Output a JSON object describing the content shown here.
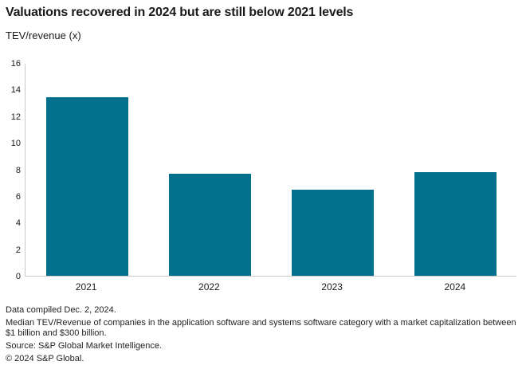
{
  "header": {
    "title": "Valuations recovered in 2024 but are still below 2021 levels",
    "subtitle": "TEV/revenue (x)"
  },
  "chart_data": {
    "type": "bar",
    "title": "Valuations recovered in 2024 but are still below 2021 levels",
    "categories": [
      "2021",
      "2022",
      "2023",
      "2024"
    ],
    "values": [
      13.5,
      7.7,
      6.5,
      7.8
    ],
    "xlabel": "",
    "ylabel": "TEV/revenue (x)",
    "ylim": [
      0,
      16
    ],
    "yticks": [
      0,
      2,
      4,
      6,
      8,
      10,
      12,
      14,
      16
    ],
    "grid": false,
    "legend": "none",
    "bar_color": "#00708c",
    "axis_color": "#c9c9c9"
  },
  "footer": {
    "compiled": "Data compiled Dec. 2, 2024.",
    "methodology": "Median TEV/Revenue of companies in the application software and systems software category with a market capitalization between $1 billion and $300 billion.",
    "source": "Source: S&P Global Market Intelligence.",
    "copyright": "© 2024 S&P Global."
  }
}
